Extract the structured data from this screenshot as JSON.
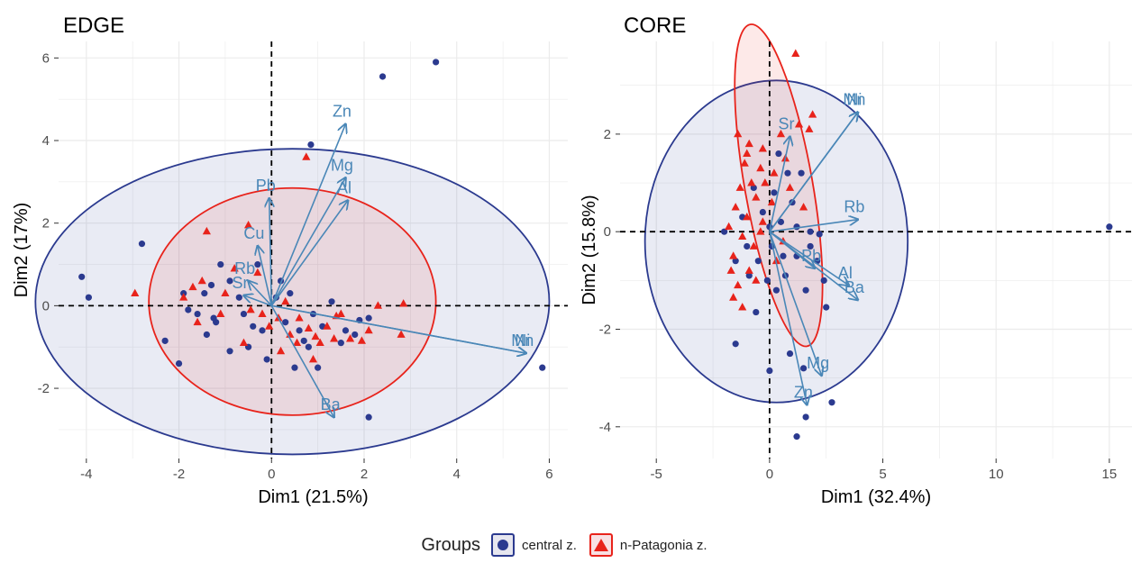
{
  "chart_data": [
    {
      "type": "scatter",
      "title": "EDGE",
      "xlabel": "Dim1 (21.5%)",
      "ylabel": "Dim2 (17%)",
      "xlim": [
        -4.6,
        6.4
      ],
      "ylim": [
        -3.7,
        6.4
      ],
      "xticks": [
        -4,
        -2,
        0,
        2,
        4,
        6
      ],
      "yticks": [
        -2,
        0,
        2,
        4,
        6
      ],
      "xtick_labels": [
        "-4",
        "-2",
        "0",
        "2",
        "4",
        "6"
      ],
      "ytick_labels": [
        "-2",
        "0",
        "2",
        "4",
        "6"
      ],
      "grid": true,
      "ellipses": [
        {
          "group": "central z.",
          "cx": 0.45,
          "cy": 0.1,
          "rx": 5.55,
          "ry": 3.7,
          "angle": 0
        },
        {
          "group": "n-Patagonia z.",
          "cx": 0.45,
          "cy": 0.1,
          "rx": 3.1,
          "ry": 2.75,
          "angle": 0
        }
      ],
      "loadings": [
        {
          "name": "Zn",
          "x": 1.6,
          "y": 4.4
        },
        {
          "name": "Mg",
          "x": 1.6,
          "y": 3.1
        },
        {
          "name": "Al",
          "x": 1.65,
          "y": 2.55
        },
        {
          "name": "Pb",
          "x": -0.05,
          "y": 2.6
        },
        {
          "name": "Cu",
          "x": -0.3,
          "y": 1.45
        },
        {
          "name": "Rb",
          "x": -0.5,
          "y": 0.6
        },
        {
          "name": "Sr",
          "x": -0.6,
          "y": 0.25
        },
        {
          "name": "Ba",
          "x": 1.35,
          "y": -2.7
        },
        {
          "name": "Mn",
          "x": 5.5,
          "y": -1.15
        },
        {
          "name": "Ni",
          "x": 5.5,
          "y": -1.15
        }
      ],
      "series": [
        {
          "name": "central z.",
          "marker": "circle",
          "color": "#2b3a8f",
          "points": [
            [
              3.55,
              5.9
            ],
            [
              2.4,
              5.55
            ],
            [
              0.85,
              3.9
            ],
            [
              -4.1,
              0.7
            ],
            [
              -3.95,
              0.2
            ],
            [
              -2.8,
              1.5
            ],
            [
              5.85,
              -1.5
            ],
            [
              2.1,
              -2.7
            ],
            [
              -2.3,
              -0.85
            ],
            [
              -2.0,
              -1.4
            ],
            [
              -1.1,
              1.0
            ],
            [
              -1.3,
              0.5
            ],
            [
              -1.45,
              0.3
            ],
            [
              -0.9,
              0.6
            ],
            [
              -0.7,
              0.2
            ],
            [
              -1.2,
              -0.4
            ],
            [
              -1.6,
              -0.2
            ],
            [
              -1.4,
              -0.7
            ],
            [
              -0.9,
              -1.1
            ],
            [
              -0.5,
              -1.0
            ],
            [
              -0.2,
              -0.6
            ],
            [
              0.3,
              -0.4
            ],
            [
              0.2,
              0.6
            ],
            [
              0.6,
              -0.6
            ],
            [
              0.9,
              -0.2
            ],
            [
              1.1,
              -0.5
            ],
            [
              1.3,
              0.1
            ],
            [
              1.6,
              -0.6
            ],
            [
              1.9,
              -0.35
            ],
            [
              2.1,
              -0.3
            ],
            [
              -0.1,
              -1.3
            ],
            [
              0.5,
              -1.5
            ],
            [
              0.8,
              -1.0
            ],
            [
              1.0,
              -1.5
            ],
            [
              -0.6,
              -0.2
            ],
            [
              0.1,
              0.2
            ],
            [
              -1.8,
              -0.1
            ],
            [
              -1.9,
              0.3
            ],
            [
              -0.3,
              1.0
            ],
            [
              -1.25,
              -0.3
            ],
            [
              0.4,
              0.3
            ],
            [
              1.5,
              -0.9
            ],
            [
              1.8,
              -0.7
            ],
            [
              -0.4,
              -0.5
            ],
            [
              0.7,
              -0.85
            ]
          ]
        },
        {
          "name": "n-Patagonia z.",
          "marker": "triangle",
          "color": "#e8231b",
          "points": [
            [
              0.75,
              3.6
            ],
            [
              -2.95,
              0.3
            ],
            [
              -1.4,
              1.8
            ],
            [
              -0.5,
              1.95
            ],
            [
              -1.5,
              0.6
            ],
            [
              -1.7,
              0.45
            ],
            [
              -1.0,
              0.3
            ],
            [
              -0.2,
              -0.2
            ],
            [
              -0.05,
              -0.5
            ],
            [
              0.15,
              -0.3
            ],
            [
              0.4,
              -0.7
            ],
            [
              0.2,
              -1.1
            ],
            [
              0.8,
              -0.55
            ],
            [
              1.2,
              -0.5
            ],
            [
              1.5,
              -0.2
            ],
            [
              1.7,
              -0.8
            ],
            [
              1.95,
              -0.85
            ],
            [
              2.3,
              0.0
            ],
            [
              2.8,
              -0.7
            ],
            [
              2.85,
              0.05
            ],
            [
              1.35,
              -0.8
            ],
            [
              0.6,
              -0.3
            ],
            [
              -0.3,
              0.8
            ],
            [
              -0.8,
              0.9
            ],
            [
              -1.1,
              -0.2
            ],
            [
              -1.6,
              -0.4
            ],
            [
              -0.6,
              -0.9
            ],
            [
              0.9,
              -1.3
            ],
            [
              1.4,
              -0.25
            ],
            [
              -1.9,
              0.2
            ],
            [
              0.3,
              0.1
            ],
            [
              0.55,
              -0.9
            ],
            [
              1.05,
              -0.9
            ],
            [
              -0.45,
              -0.1
            ],
            [
              2.1,
              -0.6
            ],
            [
              0.95,
              -0.75
            ]
          ]
        }
      ]
    },
    {
      "type": "scatter",
      "title": "CORE",
      "xlabel": "Dim1 (32.4%)",
      "ylabel": "Dim2 (15.8%)",
      "xlim": [
        -6.6,
        16.0
      ],
      "ylim": [
        -4.65,
        3.9
      ],
      "xticks": [
        -5,
        0,
        5,
        10,
        15
      ],
      "yticks": [
        -4,
        -2,
        0,
        2
      ],
      "xtick_labels": [
        "-5",
        "0",
        "5",
        "10",
        "15"
      ],
      "ytick_labels": [
        "-4",
        "-2",
        "0",
        "2"
      ],
      "grid": true,
      "ellipses": [
        {
          "group": "central z.",
          "cx": 0.3,
          "cy": -0.2,
          "rx": 5.8,
          "ry": 3.3,
          "angle": 0
        },
        {
          "group": "n-Patagonia z.",
          "cx": 0.4,
          "cy": 0.95,
          "rx": 1.5,
          "ry": 3.35,
          "angle": -10
        }
      ],
      "loadings": [
        {
          "name": "Ni",
          "x": 3.9,
          "y": 2.45
        },
        {
          "name": "Mn",
          "x": 3.9,
          "y": 2.45
        },
        {
          "name": "Sr",
          "x": 0.9,
          "y": 1.95
        },
        {
          "name": "Rb",
          "x": 3.9,
          "y": 0.25
        },
        {
          "name": "Pb",
          "x": 2.0,
          "y": -0.75
        },
        {
          "name": "Al",
          "x": 3.5,
          "y": -1.1
        },
        {
          "name": "Ba",
          "x": 3.9,
          "y": -1.4
        },
        {
          "name": "Mg",
          "x": 2.3,
          "y": -2.95
        },
        {
          "name": "Zn",
          "x": 1.65,
          "y": -3.55
        }
      ],
      "series": [
        {
          "name": "central z.",
          "marker": "circle",
          "color": "#2b3a8f",
          "points": [
            [
              15.0,
              0.1
            ],
            [
              2.5,
              -1.55
            ],
            [
              2.75,
              -3.5
            ],
            [
              1.6,
              -3.8
            ],
            [
              1.2,
              -4.2
            ],
            [
              0.0,
              -2.85
            ],
            [
              -1.5,
              -2.3
            ],
            [
              -0.6,
              -1.65
            ],
            [
              0.3,
              -1.2
            ],
            [
              0.7,
              -0.9
            ],
            [
              1.2,
              -0.5
            ],
            [
              1.8,
              -0.3
            ],
            [
              2.1,
              -0.6
            ],
            [
              2.4,
              -1.0
            ],
            [
              0.9,
              -2.5
            ],
            [
              1.5,
              -2.8
            ],
            [
              -1.0,
              -0.3
            ],
            [
              -0.5,
              -0.6
            ],
            [
              -0.1,
              -1.0
            ],
            [
              -0.3,
              0.4
            ],
            [
              0.5,
              0.2
            ],
            [
              1.0,
              0.6
            ],
            [
              0.8,
              1.2
            ],
            [
              0.4,
              1.6
            ],
            [
              1.4,
              1.2
            ],
            [
              1.8,
              0.0
            ],
            [
              2.2,
              -0.05
            ],
            [
              -2.0,
              0.0
            ],
            [
              -1.5,
              -0.6
            ],
            [
              -0.9,
              -0.9
            ],
            [
              0.1,
              -0.3
            ],
            [
              0.6,
              -0.5
            ],
            [
              1.2,
              0.1
            ],
            [
              -0.7,
              0.9
            ],
            [
              -1.2,
              0.3
            ],
            [
              0.2,
              0.8
            ],
            [
              1.6,
              -1.2
            ],
            [
              0.0,
              0.1
            ]
          ]
        },
        {
          "name": "n-Patagonia z.",
          "marker": "triangle",
          "color": "#e8231b",
          "points": [
            [
              1.15,
              3.65
            ],
            [
              1.9,
              2.4
            ],
            [
              1.3,
              2.2
            ],
            [
              1.75,
              2.1
            ],
            [
              0.5,
              2.0
            ],
            [
              -0.9,
              1.8
            ],
            [
              -0.3,
              1.7
            ],
            [
              0.7,
              1.5
            ],
            [
              -1.1,
              1.4
            ],
            [
              -0.4,
              1.3
            ],
            [
              0.2,
              1.2
            ],
            [
              -0.8,
              1.0
            ],
            [
              -1.3,
              0.9
            ],
            [
              -0.6,
              0.7
            ],
            [
              0.1,
              0.6
            ],
            [
              -1.5,
              0.5
            ],
            [
              -1.0,
              0.3
            ],
            [
              -0.3,
              0.2
            ],
            [
              -1.8,
              0.1
            ],
            [
              -1.2,
              -0.1
            ],
            [
              -0.7,
              -0.3
            ],
            [
              -1.6,
              -0.5
            ],
            [
              -0.9,
              -0.8
            ],
            [
              -1.4,
              -1.1
            ],
            [
              -1.6,
              -1.35
            ],
            [
              -1.2,
              -1.55
            ],
            [
              -0.6,
              -1.0
            ],
            [
              0.3,
              -0.6
            ],
            [
              -1.4,
              2.0
            ],
            [
              -0.2,
              1.0
            ],
            [
              0.9,
              0.9
            ],
            [
              -1.7,
              -0.8
            ],
            [
              0.6,
              -0.2
            ],
            [
              -0.4,
              0.0
            ],
            [
              -1.0,
              1.6
            ],
            [
              1.5,
              0.5
            ]
          ]
        }
      ]
    }
  ],
  "legend": {
    "title": "Groups",
    "items": [
      {
        "label": "central z.",
        "color": "#2b3a8f",
        "fill": "#e6e6ef"
      },
      {
        "label": "n-Patagonia z.",
        "color": "#e8231b",
        "fill": "#f8e0e3"
      }
    ]
  },
  "colors": {
    "arrow": "#4a87b7",
    "central": "#2b3a8f",
    "patagonia": "#e8231b"
  }
}
